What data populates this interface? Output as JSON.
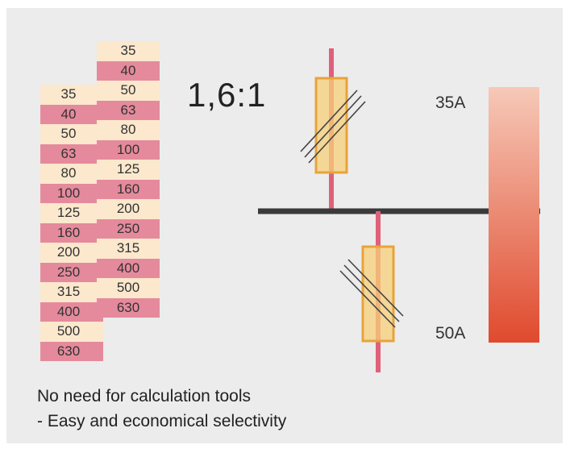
{
  "ratio_label": "1,6:1",
  "left_column": [
    "35",
    "40",
    "50",
    "63",
    "80",
    "100",
    "125",
    "160",
    "200",
    "250",
    "315",
    "400",
    "500",
    "630"
  ],
  "right_column": [
    "35",
    "40",
    "50",
    "63",
    "80",
    "100",
    "125",
    "160",
    "200",
    "250",
    "315",
    "400",
    "500",
    "630"
  ],
  "upstream_label": "35A",
  "downstream_label": "50A",
  "caption": {
    "line1": "No need for calculation tools",
    "line2": "- Easy and economical selectivity"
  },
  "colors": {
    "panel_background": "#ececec",
    "row_light": "#fbe8cd",
    "row_pink": "#e58a9c",
    "conductor": "#e0607a",
    "fuse_fill": "#f7d07a",
    "fuse_outline": "#e9a33a",
    "busbar": "#3a3a3a",
    "gradient_top": "#f6c9b8",
    "gradient_bottom": "#e04a2e"
  }
}
